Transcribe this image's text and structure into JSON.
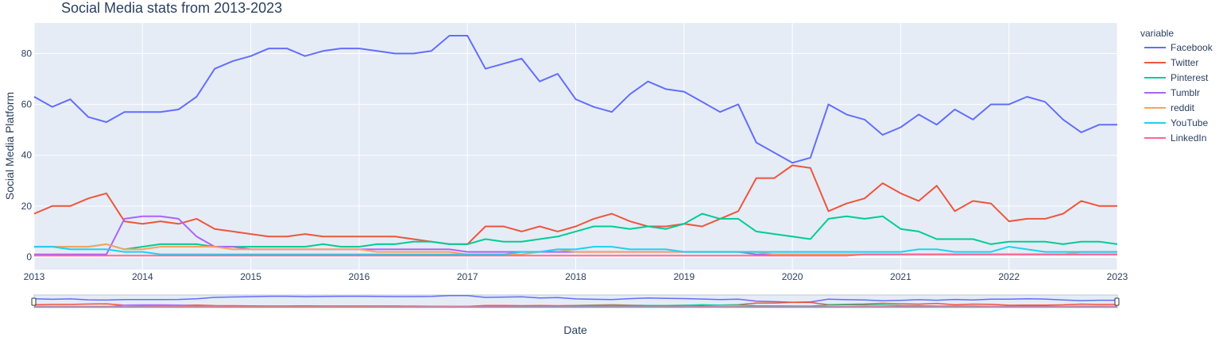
{
  "chart_data": {
    "type": "line",
    "title": "Social Media stats from 2013-2023",
    "xlabel": "Date",
    "ylabel": "Social Media Platform",
    "legend_title": "variable",
    "legend_placement": "right",
    "x_range": [
      "2013-01",
      "2023-01"
    ],
    "x_tick_labels": [
      "2013",
      "2014",
      "2015",
      "2016",
      "2017",
      "2018",
      "2019",
      "2020",
      "2021",
      "2022",
      "2023"
    ],
    "ylim": [
      -5,
      92
    ],
    "y_tick_values": [
      0,
      20,
      40,
      60,
      80
    ],
    "grid": true,
    "range_slider": true,
    "plot_bgcolor": "#e5ecf6",
    "x": [
      "2013-01",
      "2013-03",
      "2013-05",
      "2013-07",
      "2013-09",
      "2013-11",
      "2014-01",
      "2014-03",
      "2014-05",
      "2014-07",
      "2014-09",
      "2014-11",
      "2015-01",
      "2015-03",
      "2015-05",
      "2015-07",
      "2015-09",
      "2015-11",
      "2016-01",
      "2016-03",
      "2016-05",
      "2016-07",
      "2016-09",
      "2016-11",
      "2017-01",
      "2017-03",
      "2017-05",
      "2017-07",
      "2017-09",
      "2017-11",
      "2018-01",
      "2018-03",
      "2018-05",
      "2018-07",
      "2018-09",
      "2018-11",
      "2019-01",
      "2019-03",
      "2019-05",
      "2019-07",
      "2019-09",
      "2019-11",
      "2020-01",
      "2020-03",
      "2020-05",
      "2020-07",
      "2020-09",
      "2020-11",
      "2021-01",
      "2021-03",
      "2021-05",
      "2021-07",
      "2021-09",
      "2021-11",
      "2022-01",
      "2022-03",
      "2022-05",
      "2022-07",
      "2022-09",
      "2022-11",
      "2023-01"
    ],
    "series": [
      {
        "name": "Facebook",
        "color": "#636efa",
        "values": [
          63,
          59,
          62,
          55,
          53,
          57,
          57,
          57,
          58,
          63,
          74,
          77,
          79,
          82,
          82,
          79,
          81,
          82,
          82,
          81,
          80,
          80,
          81,
          87,
          87,
          74,
          76,
          78,
          69,
          72,
          62,
          59,
          57,
          64,
          69,
          66,
          65,
          61,
          57,
          60,
          45,
          41,
          37,
          39,
          60,
          56,
          54,
          48,
          51,
          56,
          52,
          58,
          54,
          60,
          60,
          63,
          61,
          54,
          49,
          52,
          52
        ]
      },
      {
        "name": "Twitter",
        "color": "#ef553b",
        "values": [
          17,
          20,
          20,
          23,
          25,
          14,
          13,
          14,
          13,
          15,
          11,
          10,
          9,
          8,
          8,
          9,
          8,
          8,
          8,
          8,
          8,
          7,
          6,
          5,
          5,
          12,
          12,
          10,
          12,
          10,
          12,
          15,
          17,
          14,
          12,
          12,
          13,
          12,
          15,
          18,
          31,
          31,
          36,
          35,
          18,
          21,
          23,
          29,
          25,
          22,
          28,
          18,
          22,
          21,
          14,
          15,
          15,
          17,
          22,
          20,
          20
        ]
      },
      {
        "name": "Pinterest",
        "color": "#00cc96",
        "values": [
          4,
          4,
          4,
          4,
          5,
          3,
          4,
          5,
          5,
          5,
          4,
          4,
          4,
          4,
          4,
          4,
          5,
          4,
          4,
          5,
          5,
          6,
          6,
          5,
          5,
          7,
          6,
          6,
          7,
          8,
          10,
          12,
          12,
          11,
          12,
          11,
          13,
          17,
          15,
          15,
          10,
          9,
          8,
          7,
          15,
          16,
          15,
          16,
          11,
          10,
          7,
          7,
          7,
          5,
          6,
          6,
          6,
          5,
          6,
          6,
          5
        ]
      },
      {
        "name": "Tumblr",
        "color": "#ab63fa",
        "values": [
          1,
          1,
          1,
          1,
          1,
          15,
          16,
          16,
          15,
          8,
          4,
          4,
          3,
          3,
          3,
          3,
          3,
          3,
          3,
          3,
          3,
          3,
          3,
          3,
          2,
          2,
          2,
          2,
          2,
          2,
          2,
          2,
          2,
          2,
          2,
          2,
          2,
          2,
          2,
          2,
          1,
          1,
          1,
          1,
          1,
          1,
          1,
          1,
          1,
          1,
          1,
          1,
          1,
          1,
          1,
          1,
          1,
          1,
          1,
          1,
          1
        ]
      },
      {
        "name": "reddit",
        "color": "#ffa15a",
        "values": [
          4,
          4,
          4,
          4,
          5,
          3,
          3,
          4,
          4,
          4,
          4,
          3,
          3,
          3,
          3,
          3,
          3,
          3,
          3,
          2,
          2,
          2,
          2,
          2,
          1,
          1,
          1,
          1,
          2,
          3,
          2,
          2,
          2,
          2,
          2,
          2,
          2,
          2,
          2,
          2,
          2,
          1,
          1,
          1,
          1,
          1,
          1,
          1,
          1,
          1,
          1,
          1,
          1,
          1,
          1,
          1,
          1,
          1,
          2,
          2,
          2
        ]
      },
      {
        "name": "YouTube",
        "color": "#19d3f3",
        "values": [
          4,
          4,
          3,
          3,
          3,
          2,
          2,
          1,
          1,
          1,
          1,
          1,
          1,
          1,
          1,
          1,
          1,
          1,
          1,
          1,
          1,
          1,
          1,
          1,
          1,
          1,
          1,
          2,
          2,
          3,
          3,
          4,
          4,
          3,
          3,
          3,
          2,
          2,
          2,
          2,
          2,
          2,
          2,
          2,
          2,
          2,
          2,
          2,
          2,
          3,
          3,
          2,
          2,
          2,
          4,
          3,
          2,
          2,
          2,
          2,
          2
        ]
      },
      {
        "name": "LinkedIn",
        "color": "#ff6692",
        "values": [
          0.5,
          0.5,
          0.5,
          0.5,
          0.5,
          0.5,
          0.5,
          0.5,
          0.5,
          0.5,
          0.5,
          0.5,
          0.5,
          0.5,
          0.5,
          0.5,
          0.5,
          0.5,
          0.5,
          0.5,
          0.5,
          0.5,
          0.5,
          0.5,
          0.5,
          0.5,
          0.5,
          0.5,
          0.5,
          0.5,
          0.5,
          0.5,
          0.5,
          0.5,
          0.5,
          0.5,
          0.5,
          0.5,
          0.5,
          0.5,
          0.5,
          0.5,
          0.5,
          0.5,
          0.5,
          0.5,
          1,
          1,
          1,
          1,
          1,
          1,
          1,
          1,
          1,
          1,
          1,
          1,
          1,
          1,
          1
        ]
      }
    ]
  }
}
